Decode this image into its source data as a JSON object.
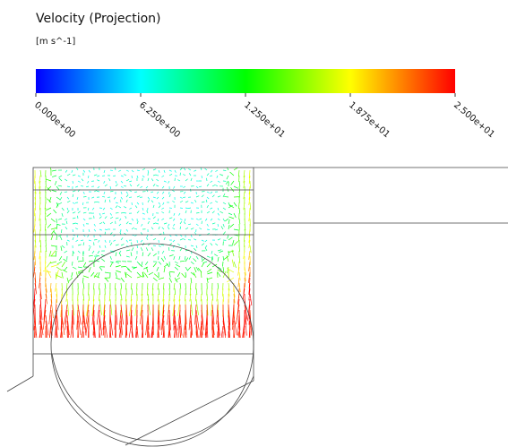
{
  "legend": {
    "title": "Velocity  (Projection)",
    "units": "[m  s^-1]",
    "range": [
      0,
      25
    ],
    "ticks": [
      {
        "value": 0,
        "label": "0.000e+00"
      },
      {
        "value": 6.25,
        "label": "6.250e+00"
      },
      {
        "value": 12.5,
        "label": "1.250e+01"
      },
      {
        "value": 18.75,
        "label": "1.875e+01"
      },
      {
        "value": 25,
        "label": "2.500e+01"
      }
    ]
  }
}
